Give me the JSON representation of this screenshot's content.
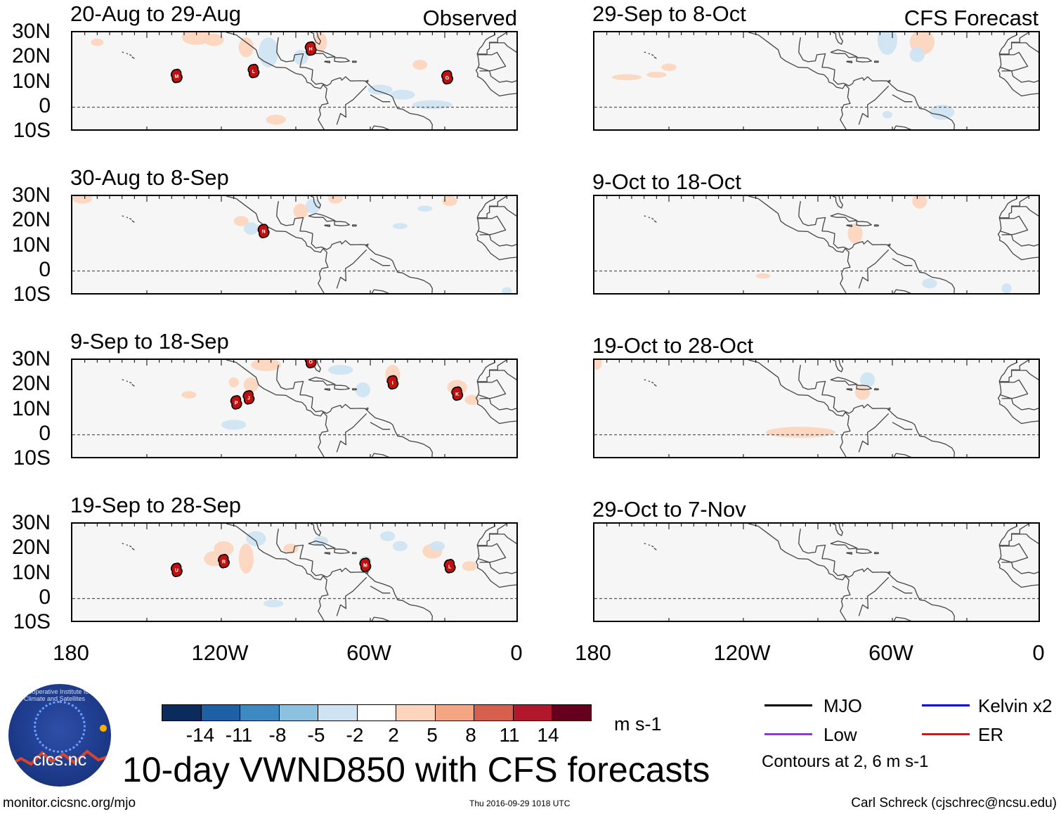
{
  "header": {
    "observed_label": "Observed",
    "forecast_label": "CFS Forecast"
  },
  "panels": [
    {
      "title": "20-Aug to 29-Aug",
      "storms": [
        "M",
        "L",
        "H",
        "G"
      ]
    },
    {
      "title": "30-Aug to 8-Sep",
      "storms": [
        "N"
      ]
    },
    {
      "title": "9-Sep to 18-Sep",
      "storms": [
        "O",
        "P",
        "J",
        "I",
        "K"
      ]
    },
    {
      "title": "19-Sep to 28-Sep",
      "storms": [
        "U",
        "R",
        "M",
        "L"
      ]
    },
    {
      "title": "29-Sep to 8-Oct",
      "storms": []
    },
    {
      "title": "9-Oct to 18-Oct",
      "storms": []
    },
    {
      "title": "19-Oct to 28-Oct",
      "storms": []
    },
    {
      "title": "29-Oct to 7-Nov",
      "storms": []
    }
  ],
  "axes": {
    "lat_labels": [
      "30N",
      "20N",
      "10N",
      "0",
      "10S"
    ],
    "lon_labels": [
      "180",
      "120W",
      "60W",
      "0"
    ]
  },
  "colorbar": {
    "ticks": [
      "-14",
      "-11",
      "-8",
      "-5",
      "-2",
      "2",
      "5",
      "8",
      "11",
      "14"
    ],
    "colors": [
      "#0a2b5c",
      "#1f5fa6",
      "#3d8ac2",
      "#8cc1e0",
      "#cfe4f2",
      "#ffffff",
      "#fdd5bd",
      "#f4a582",
      "#d6604d",
      "#b2182b",
      "#67001f"
    ],
    "units": "m s-1"
  },
  "title": "10-day VWND850 with CFS forecasts",
  "legend": {
    "items": [
      {
        "label": "MJO",
        "color": "#000000"
      },
      {
        "label": "Kelvin x2",
        "color": "#0000dd"
      },
      {
        "label": "Low",
        "color": "#9b30e0"
      },
      {
        "label": "ER",
        "color": "#e01010"
      }
    ],
    "contours": "Contours at 2, 6 m s-1"
  },
  "logo": {
    "name": "cics.nc",
    "arc_text": "Cooperative Institute for Climate and Satellites"
  },
  "footer": {
    "url": "monitor.cicsnc.org/mjo",
    "timestamp": "Thu 2016-09-29 1018 UTC",
    "author": "Carl Schreck (cjschrec@ncsu.edu)"
  }
}
